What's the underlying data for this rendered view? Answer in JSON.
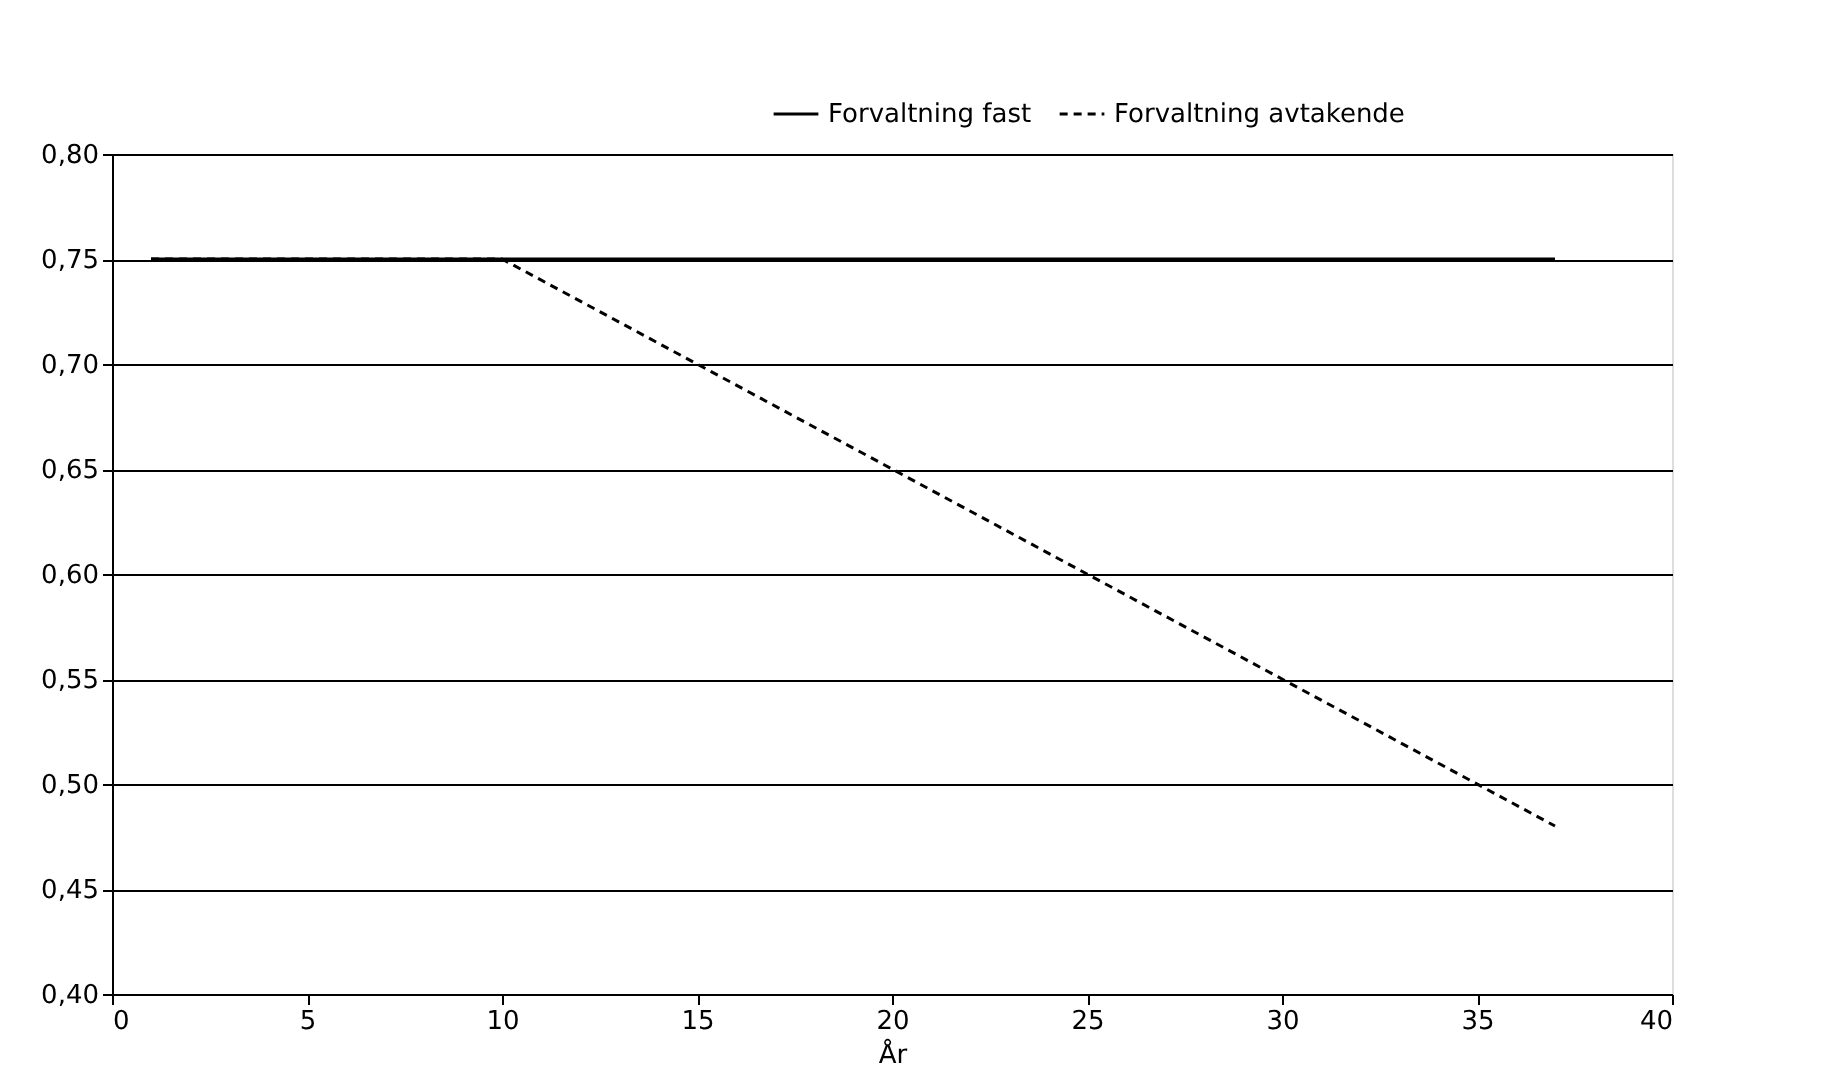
{
  "chart_data": {
    "type": "line",
    "xlabel": "År",
    "xlim": [
      0,
      40
    ],
    "xticks": [
      0,
      5,
      10,
      15,
      20,
      25,
      30,
      35,
      40
    ],
    "ylim": [
      0.4,
      0.8
    ],
    "yticks": [
      {
        "value": 0.4,
        "label": "0,40"
      },
      {
        "value": 0.45,
        "label": "0,45"
      },
      {
        "value": 0.5,
        "label": "0,50"
      },
      {
        "value": 0.55,
        "label": "0,55"
      },
      {
        "value": 0.6,
        "label": "0,60"
      },
      {
        "value": 0.65,
        "label": "0,65"
      },
      {
        "value": 0.7,
        "label": "0,70"
      },
      {
        "value": 0.75,
        "label": "0,75"
      },
      {
        "value": 0.8,
        "label": "0,80"
      }
    ],
    "grid": "y",
    "legend": "top right",
    "marker": "none",
    "series": [
      {
        "name": "Forvaltning fast",
        "color": "#000000",
        "line_style": "solid",
        "x": [
          1,
          37
        ],
        "values": [
          0.75,
          0.75
        ]
      },
      {
        "name": "Forvaltning avtakende",
        "color": "#000000",
        "line_style": "dashed",
        "x": [
          1,
          10,
          37
        ],
        "values": [
          0.75,
          0.75,
          0.48
        ]
      }
    ]
  }
}
